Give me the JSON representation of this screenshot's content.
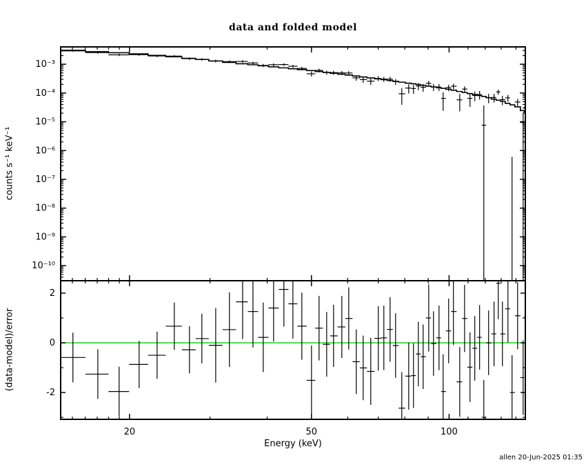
{
  "footer": {
    "signature": "allen 20-Jun-2025 01:35"
  },
  "colors": {
    "foreground": "#000000",
    "background": "#ffffff",
    "zero_line": "#00cc00"
  },
  "chart_data": {
    "type": "scatter",
    "title": "data and folded model",
    "xlabel": "Energy (keV)",
    "xscale": "log",
    "xlim": [
      14.14,
      146.8
    ],
    "xticks": [
      20,
      50,
      100
    ],
    "xtick_labels": [
      "20",
      "50",
      "100"
    ],
    "xminor_ticks": [
      15,
      16,
      17,
      18,
      19,
      30,
      40,
      60,
      70,
      80,
      90,
      110,
      120,
      130,
      140
    ],
    "energies": [
      15.04,
      17.05,
      18.98,
      20.99,
      22.98,
      25.06,
      27.05,
      28.79,
      30.87,
      33.08,
      35.35,
      37.24,
      39.22,
      41.32,
      43.52,
      45.54,
      47.63,
      50.01,
      51.95,
      53.98,
      55.88,
      58.26,
      60.32,
      62.66,
      64.88,
      67.4,
      70.01,
      71.99,
      74.29,
      76.37,
      78.8,
      81.59,
      83.58,
      85.65,
      87.75,
      90.24,
      92.44,
      95.05,
      97.04,
      99.77,
      102.2,
      105.5,
      108.1,
      111.1,
      113.8,
      116.6,
      119.1,
      122.0,
      125.4,
      128.1,
      130.8,
      134.5,
      137.3,
      141.2,
      145.2,
      146.7
    ],
    "panels": [
      {
        "name": "spectrum",
        "ylabel": "counts s⁻¹ keV⁻¹",
        "yscale": "log",
        "ylim": [
          3e-11,
          0.004
        ],
        "ytick_values": [
          0.001,
          0.0001,
          1e-05,
          1e-06,
          1e-07,
          1e-08,
          1e-09,
          1e-10
        ],
        "ytick_labels": [
          "10⁻³",
          "10⁻⁴",
          "10⁻⁵",
          "10⁻⁶",
          "10⁻⁷",
          "10⁻⁸",
          "10⁻⁹",
          "10⁻¹⁰"
        ],
        "series": [
          {
            "name": "data",
            "type": "points_with_errors",
            "counts": [
              0.00291,
              0.00251,
              0.00212,
              0.00214,
              0.00194,
              0.00192,
              0.00156,
              0.00148,
              0.00129,
              0.00123,
              0.00125,
              0.0011,
              0.000908,
              0.00096,
              0.000973,
              0.00085,
              0.000715,
              0.000465,
              0.000612,
              0.000515,
              0.00051,
              0.0005,
              0.000495,
              0.000336,
              0.000293,
              0.000258,
              0.000321,
              0.000303,
              0.000304,
              0.000249,
              9.4e-05,
              0.000149,
              0.000143,
              0.000175,
              0.000158,
              0.000218,
              0.000162,
              0.000161,
              6.5e-05,
              0.000154,
              0.000172,
              5.8e-05,
              0.000137,
              6.5e-05,
              8.2e-05,
              8.8e-05,
              7.6e-06,
              6.9e-05,
              7e-05,
              0.000109,
              5.9e-05,
              6.8e-05,
              1e-11,
              4.85e-05,
              9.4e-06,
              3.2e-05
            ],
            "errors": [
              0.00021,
              0.00019,
              0.0002,
              0.00018,
              0.00018,
              0.00016,
              0.00016,
              0.00015,
              0.00014,
              0.00013,
              0.000125,
              0.000115,
              0.000115,
              0.000106,
              0.000105,
              9.8e-05,
              9.8e-05,
              9e-05,
              8.9e-05,
              8.3e-05,
              8.3e-05,
              7.7e-05,
              7.6e-05,
              7e-05,
              6.9e-05,
              6.7e-05,
              6.2e-05,
              6.1e-05,
              6e-05,
              5.6e-05,
              5.5e-05,
              5.3e-05,
              5e-05,
              4.9e-05,
              4.8e-05,
              4.5e-05,
              4.4e-05,
              4.3e-05,
              4.1e-05,
              3.9e-05,
              3.8e-05,
              3.5e-05,
              3.3e-05,
              3.2e-05,
              3e-05,
              2.9e-05,
              2.9e-05,
              2.5e-05,
              2.3e-05,
              2.2e-05,
              2.1e-05,
              1.8e-05,
              6e-07,
              1.4e-05,
              1.08e-05,
              1e-05
            ]
          },
          {
            "name": "folded model",
            "type": "histogram_steps",
            "values": [
              0.00304,
              0.00275,
              0.00251,
              0.0023,
              0.00203,
              0.00181,
              0.0016,
              0.00146,
              0.0013,
              0.00116,
              0.00104,
              0.000959,
              0.000883,
              0.000812,
              0.000748,
              0.000697,
              0.00065,
              0.000601,
              0.000559,
              0.00052,
              0.000487,
              0.000451,
              0.000421,
              0.000389,
              0.000362,
              0.000335,
              0.00031,
              0.000291,
              0.000272,
              0.000255,
              0.000238,
              0.00022,
              0.00021,
              0.000197,
              0.000185,
              0.000173,
              0.000163,
              0.000152,
              0.000145,
              0.000135,
              0.000125,
              0.000113,
              0.000104,
              9.57e-05,
              8.87e-05,
              8.21e-05,
              7.6e-05,
              6.87e-05,
              6.13e-05,
              5.61e-05,
              5.15e-05,
              4.37e-05,
              3.86e-05,
              3.3e-05,
              2.45e-05,
              2.2e-05
            ]
          }
        ]
      },
      {
        "name": "residuals",
        "ylabel": "(data-model)/error",
        "yscale": "linear",
        "ylim": [
          -3.08,
          2.5
        ],
        "ytick_values": [
          2,
          0,
          -2
        ],
        "ytick_labels": [
          "2",
          "0",
          "-2"
        ],
        "yminor_ticks": [
          1,
          -1,
          -3
        ],
        "zero_line": {
          "y": 0,
          "color": "#00cc00"
        },
        "series": [
          {
            "name": "residuals",
            "type": "points_with_errors",
            "values": [
              -0.59,
              -1.26,
              -1.96,
              -0.87,
              -0.5,
              0.67,
              -0.28,
              0.17,
              -0.1,
              0.53,
              1.65,
              1.26,
              0.22,
              1.4,
              2.15,
              1.57,
              0.67,
              -1.51,
              0.59,
              -0.06,
              0.28,
              0.64,
              0.98,
              -0.76,
              -1.01,
              -1.15,
              0.18,
              0.2,
              0.54,
              -0.11,
              -2.63,
              -1.34,
              -1.32,
              -0.45,
              -0.56,
              1.0,
              -0.03,
              0.2,
              -1.96,
              0.48,
              1.26,
              -1.57,
              0.98,
              -0.98,
              -0.22,
              0.22,
              -3.0,
              0.0,
              0.36,
              2.4,
              0.36,
              1.37,
              -2.0,
              1.09,
              -1.4,
              1.05
            ],
            "errors": [
              1.0,
              1.0,
              1.0,
              0.95,
              0.95,
              0.95,
              0.95,
              1.0,
              1.5,
              1.5,
              1.5,
              1.45,
              1.4,
              1.35,
              1.5,
              1.4,
              1.35,
              1.4,
              1.3,
              1.3,
              1.25,
              1.25,
              1.25,
              1.3,
              1.3,
              1.35,
              1.3,
              1.3,
              1.3,
              1.3,
              1.45,
              1.35,
              1.3,
              1.3,
              1.3,
              1.35,
              1.3,
              1.3,
              1.5,
              1.3,
              1.35,
              1.4,
              1.35,
              1.4,
              1.3,
              1.3,
              1.5,
              1.3,
              1.3,
              1.45,
              1.3,
              1.35,
              1.5,
              1.35,
              1.5,
              1.4
            ]
          }
        ]
      }
    ]
  }
}
